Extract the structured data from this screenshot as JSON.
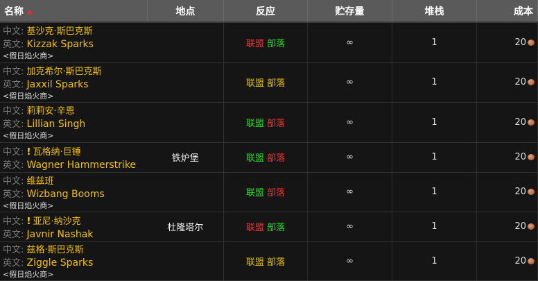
{
  "headers": {
    "name": "名称",
    "location": "地点",
    "reaction": "反应",
    "stock": "贮存量",
    "stack": "堆栈",
    "cost": "成本"
  },
  "labels": {
    "zh": "中文:",
    "en": "英文:"
  },
  "rows": [
    {
      "zh": "基沙克·斯巴克斯",
      "en": "Kizzak Sparks",
      "tag": "<假日焰火商>",
      "quest": false,
      "location": "",
      "alliance": "联盟",
      "alliance_color": "red",
      "horde": "部落",
      "horde_color": "green",
      "stock": "∞",
      "stack": "1",
      "cost": "20"
    },
    {
      "zh": "加克希尔·斯巴克斯",
      "en": "Jaxxil Sparks",
      "tag": "<假日焰火商>",
      "quest": false,
      "location": "",
      "alliance": "联盟",
      "alliance_color": "yellow",
      "horde": "部落",
      "horde_color": "yellow",
      "stock": "∞",
      "stack": "1",
      "cost": "20"
    },
    {
      "zh": "莉莉安·辛恩",
      "en": "Lillian Singh",
      "tag": "<假日焰火商>",
      "quest": false,
      "location": "",
      "alliance": "联盟",
      "alliance_color": "green",
      "horde": "部落",
      "horde_color": "red",
      "stock": "∞",
      "stack": "1",
      "cost": "20"
    },
    {
      "zh": "瓦格纳·巨锤",
      "en": "Wagner Hammerstrike",
      "tag": "",
      "quest": true,
      "location": "铁炉堡",
      "alliance": "联盟",
      "alliance_color": "green",
      "horde": "部落",
      "horde_color": "red",
      "stock": "∞",
      "stack": "1",
      "cost": "20"
    },
    {
      "zh": "维兹班",
      "en": "Wizbang Booms",
      "tag": "<假日焰火商>",
      "quest": false,
      "location": "",
      "alliance": "联盟",
      "alliance_color": "green",
      "horde": "部落",
      "horde_color": "red",
      "stock": "∞",
      "stack": "1",
      "cost": "20"
    },
    {
      "zh": "亚尼·纳沙克",
      "en": "Javnir Nashak",
      "tag": "",
      "quest": true,
      "location": "杜隆塔尔",
      "alliance": "联盟",
      "alliance_color": "red",
      "horde": "部落",
      "horde_color": "green",
      "stock": "∞",
      "stack": "1",
      "cost": "20"
    },
    {
      "zh": "兹格·斯巴克斯",
      "en": "Ziggle Sparks",
      "tag": "<假日焰火商>",
      "quest": false,
      "location": "",
      "alliance": "联盟",
      "alliance_color": "yellow",
      "horde": "部落",
      "horde_color": "yellow",
      "stock": "∞",
      "stack": "1",
      "cost": "20"
    }
  ],
  "icons": {
    "sort": "sort-ascending-arrow",
    "quest": "exclamation-quest-icon",
    "currency": "copper-coin-icon"
  }
}
